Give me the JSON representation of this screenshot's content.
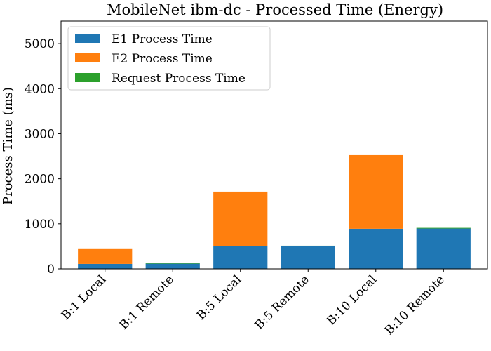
{
  "chart_data": {
    "type": "bar",
    "stacked": true,
    "title": "MobileNet ibm-dc - Processed Time (Energy)",
    "ylabel": "Process Time (ms)",
    "xlabel": "",
    "ylim": [
      0,
      5500
    ],
    "yticks": [
      0,
      1000,
      2000,
      3000,
      4000,
      5000
    ],
    "categories": [
      "B:1 Local",
      "B:1 Remote",
      "B:5 Local",
      "B:5 Remote",
      "B:10 Local",
      "B:10 Remote"
    ],
    "series": [
      {
        "name": "E1 Process Time",
        "color": "#1f77b4",
        "values": [
          110,
          115,
          500,
          500,
          890,
          895
        ]
      },
      {
        "name": "E2 Process Time",
        "color": "#ff7f0e",
        "values": [
          345,
          0,
          1215,
          0,
          1635,
          0
        ]
      },
      {
        "name": "Request Process Time",
        "color": "#2ca02c",
        "values": [
          0,
          15,
          0,
          15,
          0,
          15
        ]
      }
    ],
    "legend": "top-left",
    "grid": false
  }
}
